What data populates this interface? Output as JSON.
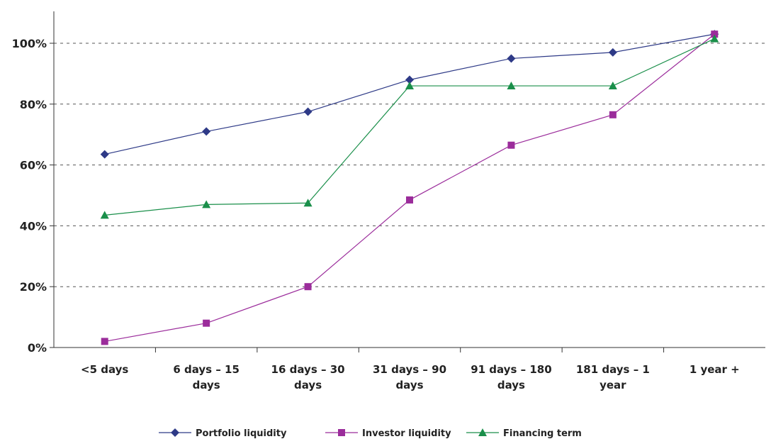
{
  "chart_data": {
    "type": "line",
    "categories": [
      [
        "<5 days"
      ],
      [
        "6 days – 15",
        "days"
      ],
      [
        "16 days – 30",
        "days"
      ],
      [
        "31 days – 90",
        "days"
      ],
      [
        "91 days – 180",
        "days"
      ],
      [
        "181 days – 1",
        "year"
      ],
      [
        "1 year +"
      ]
    ],
    "y_ticks": [
      "0%",
      "20%",
      "40%",
      "60%",
      "80%",
      "100%"
    ],
    "y_tick_values": [
      0,
      20,
      40,
      60,
      80,
      100
    ],
    "ylim": [
      0,
      110
    ],
    "grid": "horizontal-dashed",
    "legend_position": "bottom",
    "series": [
      {
        "name": "Portfolio liquidity",
        "color": "#2E3A87",
        "marker": "diamond",
        "values": [
          63.5,
          71,
          77.5,
          88,
          95,
          97,
          103
        ]
      },
      {
        "name": "Investor liquidity",
        "color": "#9B2C9B",
        "marker": "square",
        "values": [
          2,
          8,
          20,
          48.5,
          66.5,
          76.5,
          103
        ]
      },
      {
        "name": "Financing term",
        "color": "#1A8F4A",
        "marker": "triangle",
        "values": [
          43.5,
          47,
          47.5,
          86,
          86,
          86,
          101.5
        ]
      }
    ]
  }
}
